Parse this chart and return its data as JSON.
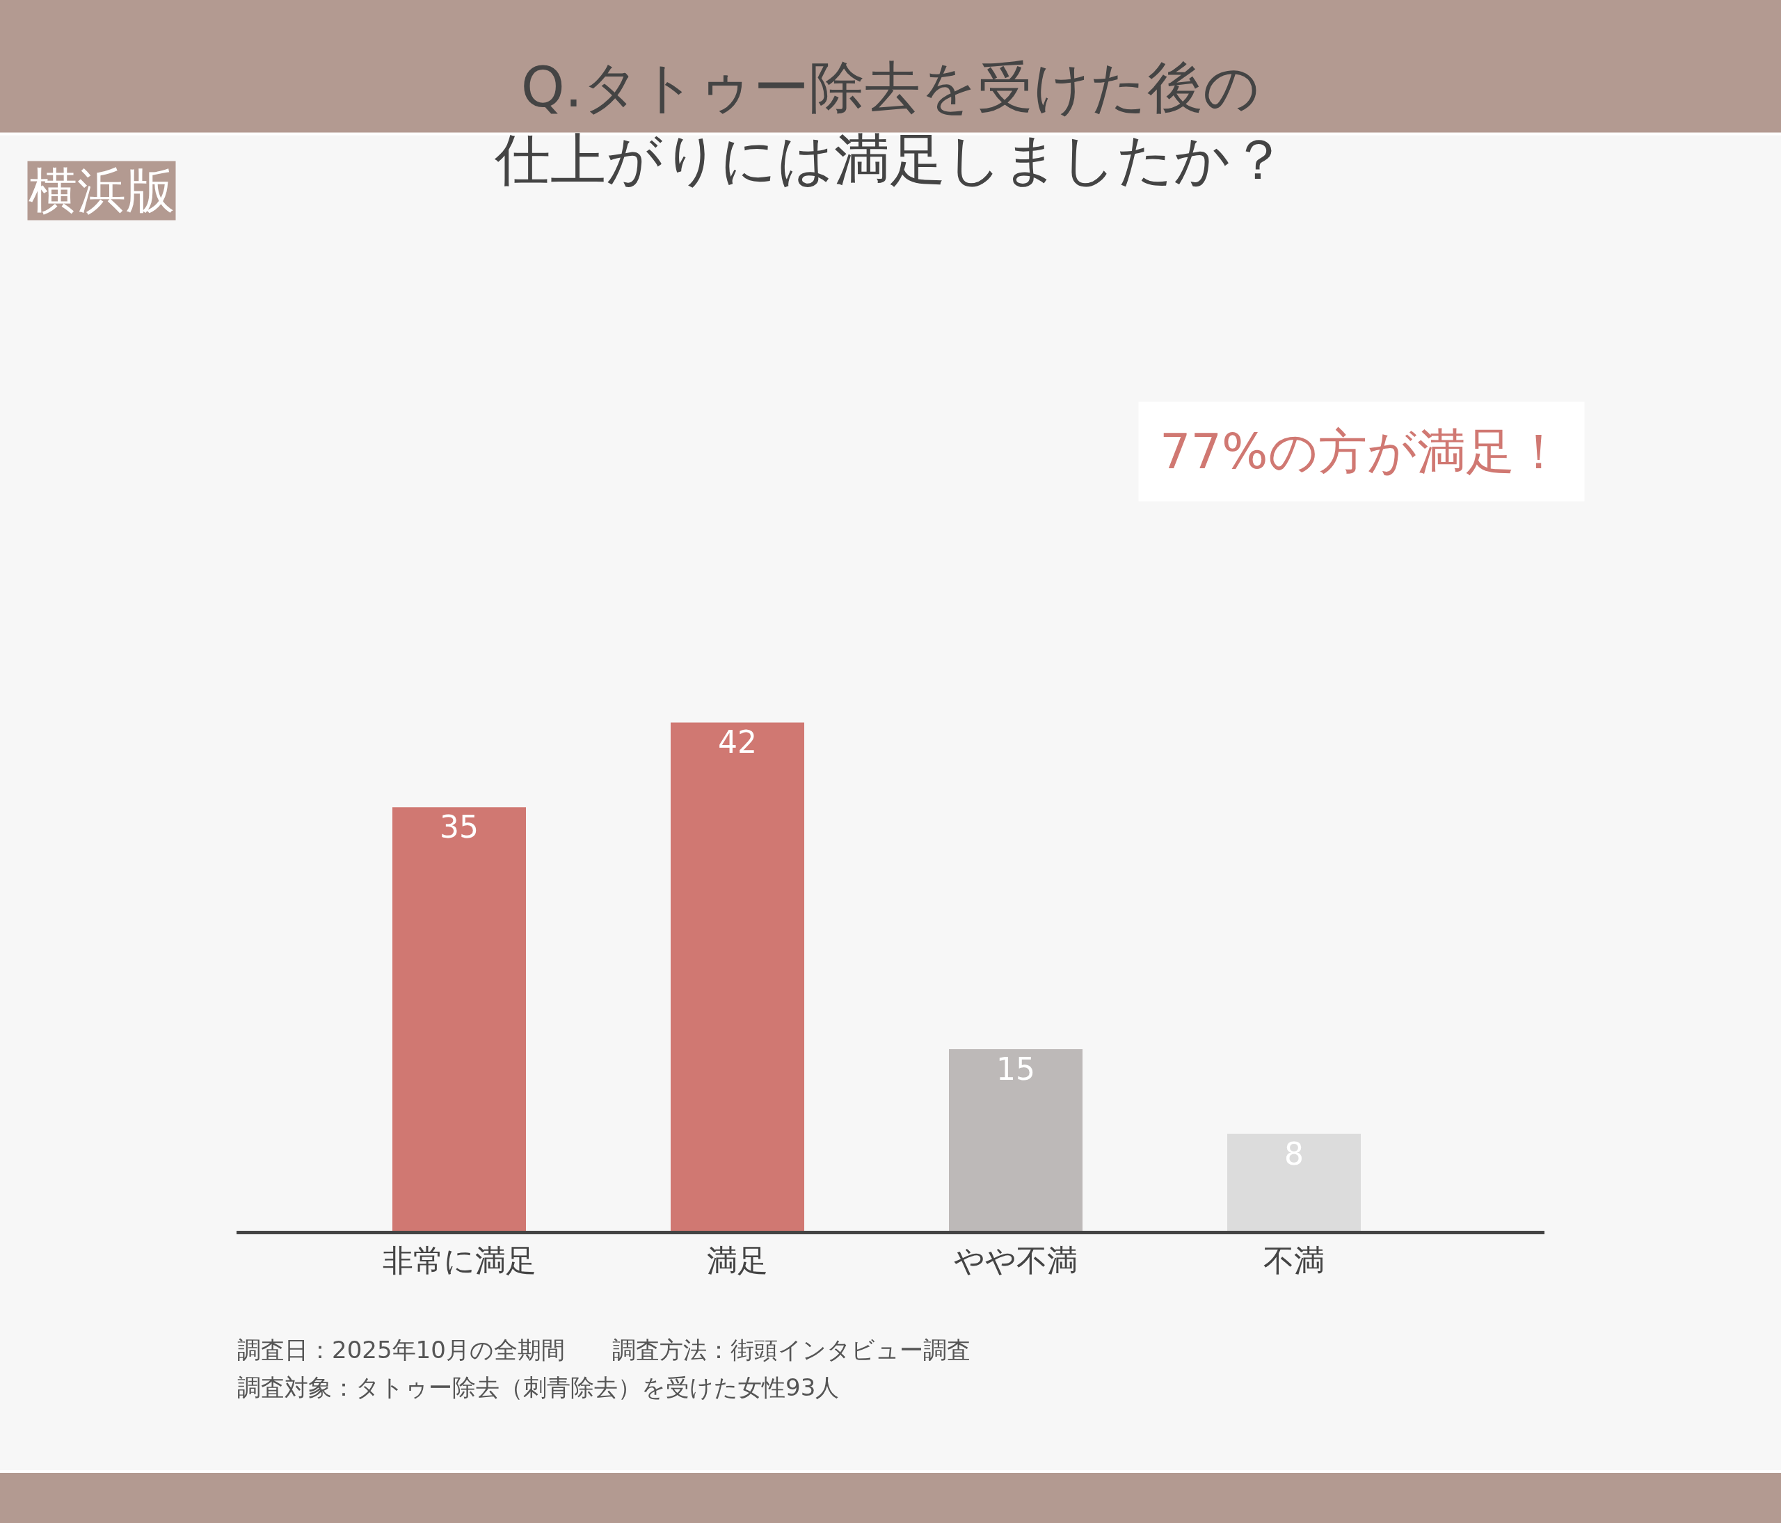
{
  "chart_data": {
    "type": "bar",
    "title": "Q.タトゥー除去を受けた後の仕上がりには満足しましたか？",
    "subtitle": "横浜版",
    "categories": [
      "非常に満足",
      "満足",
      "やや不満",
      "不満"
    ],
    "values": [
      35,
      42,
      15,
      8
    ],
    "colors": [
      "#d07872",
      "#d07872",
      "#bdb9b8",
      "#dcdcdc"
    ],
    "data_labels": true,
    "legend": false,
    "grid": false,
    "annotations": [
      "77%の方が満足！",
      "調査日：2025年10月の全期間　　調査方法：街頭インタビュー調査",
      "調査対象：タトゥー除去（刺青除去）を受けた女性93人"
    ]
  }
}
